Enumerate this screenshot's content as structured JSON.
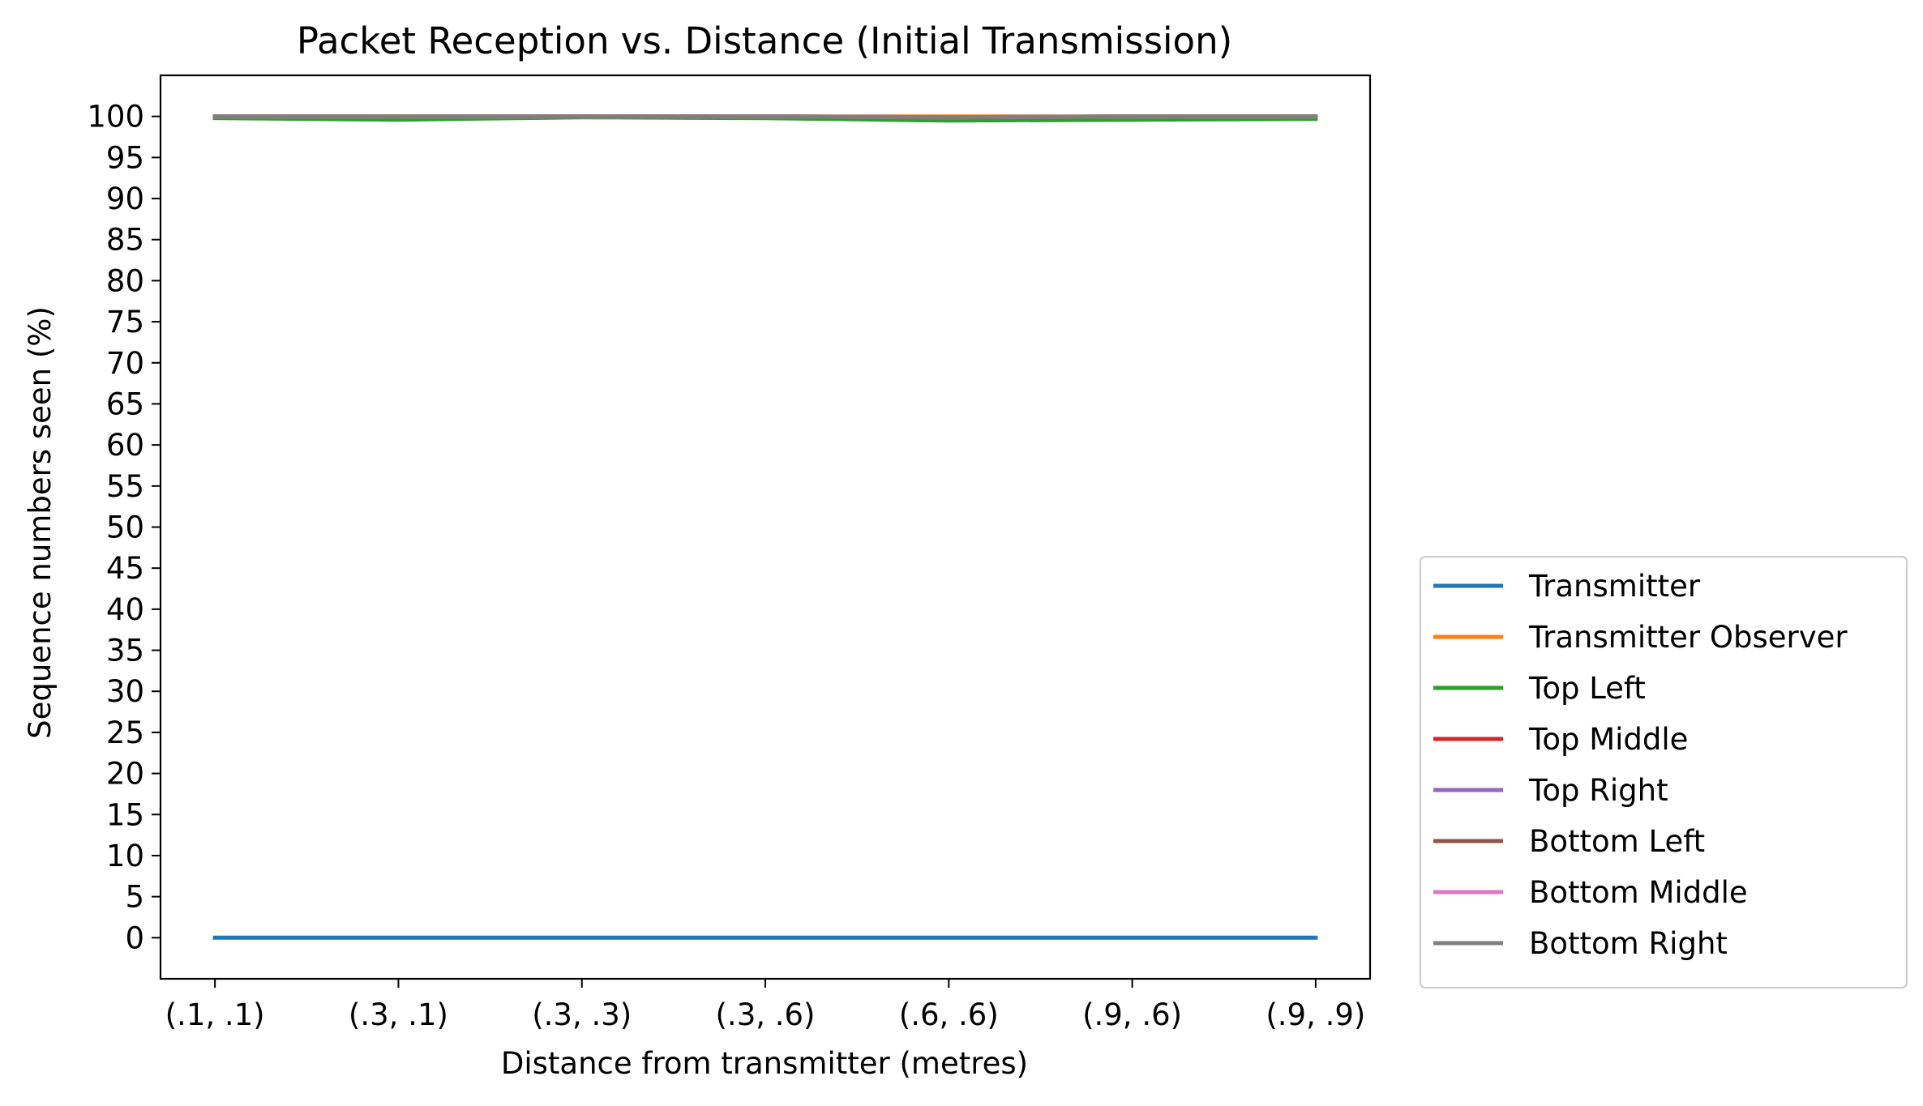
{
  "chart_data": {
    "type": "line",
    "title": "Packet Reception vs. Distance (Initial Transmission)",
    "xlabel": "Distance from transmitter (metres)",
    "ylabel": "Sequence numbers seen (%)",
    "categories": [
      "(.1, .1)",
      "(.3, .1)",
      "(.3, .3)",
      "(.3, .6)",
      "(.6, .6)",
      "(.9, .6)",
      "(.9, .9)"
    ],
    "ylim": [
      -5,
      105
    ],
    "yticks": [
      0,
      5,
      10,
      15,
      20,
      25,
      30,
      35,
      40,
      45,
      50,
      55,
      60,
      65,
      70,
      75,
      80,
      85,
      90,
      95,
      100
    ],
    "grid": false,
    "legend_position": "outside-right-bottom",
    "series": [
      {
        "name": "Transmitter",
        "color": "#1f77b4",
        "values": [
          0,
          0,
          0,
          0,
          0,
          0,
          0
        ]
      },
      {
        "name": "Transmitter Observer",
        "color": "#ff7f0e",
        "values": [
          100,
          100,
          100,
          100,
          100,
          100,
          100
        ]
      },
      {
        "name": "Top Left",
        "color": "#2ca02c",
        "values": [
          99.8,
          99.6,
          99.9,
          99.8,
          99.5,
          99.6,
          99.7
        ]
      },
      {
        "name": "Top Middle",
        "color": "#d62728",
        "values": [
          100,
          100,
          100,
          100,
          99.9,
          100,
          100
        ]
      },
      {
        "name": "Top Right",
        "color": "#9467bd",
        "values": [
          100,
          100,
          100,
          100,
          99.9,
          100,
          100
        ]
      },
      {
        "name": "Bottom Left",
        "color": "#8c564b",
        "values": [
          100,
          100,
          100,
          100,
          99.9,
          100,
          100
        ]
      },
      {
        "name": "Bottom Middle",
        "color": "#e377c2",
        "values": [
          100,
          100,
          100,
          100,
          99.9,
          100,
          100
        ]
      },
      {
        "name": "Bottom Right",
        "color": "#7f7f7f",
        "values": [
          100,
          100,
          100,
          100,
          99.9,
          100,
          100
        ]
      }
    ]
  }
}
